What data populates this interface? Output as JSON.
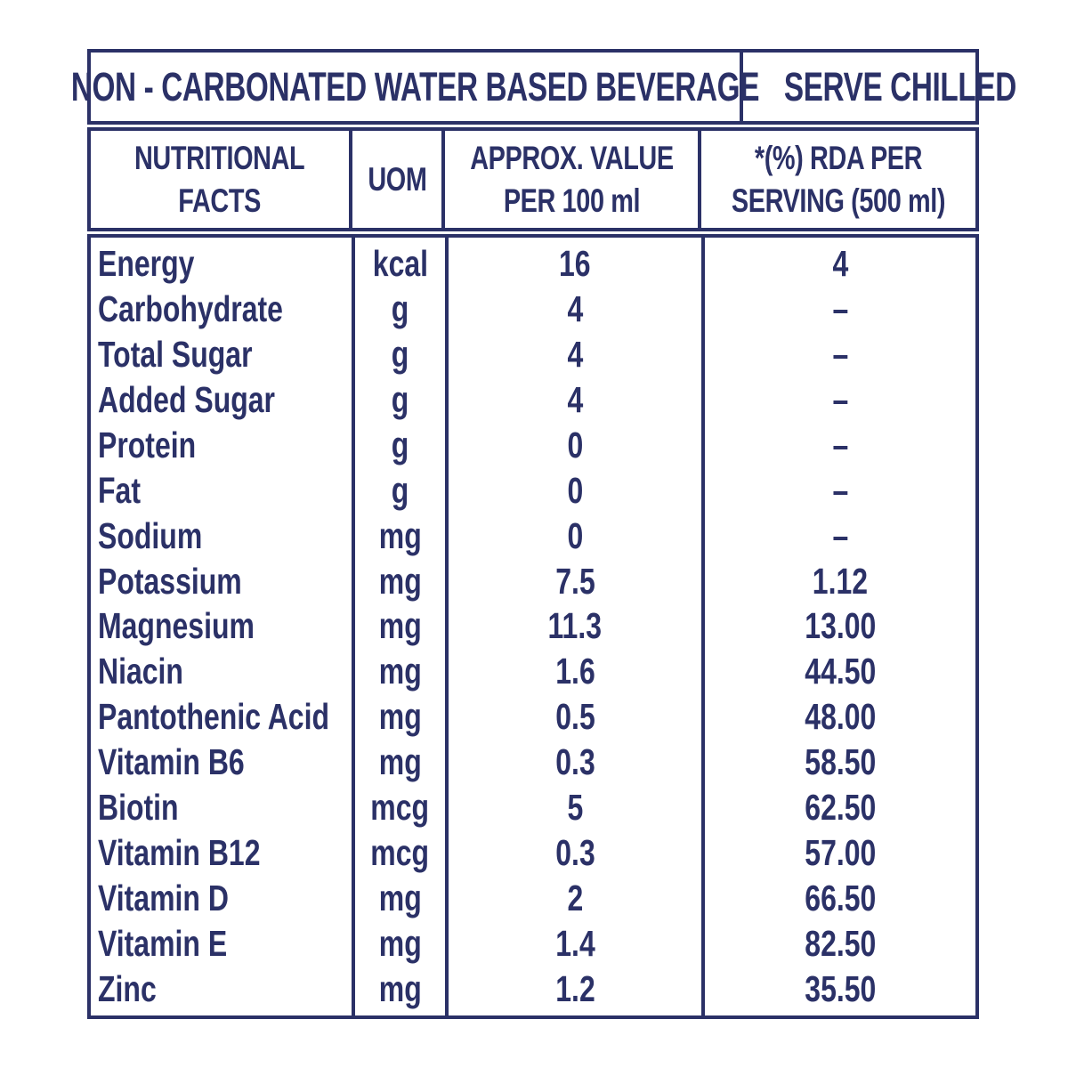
{
  "colors": {
    "ink": "#2b3167",
    "paper": "#ffffff"
  },
  "banner": {
    "product_type": "NON - CARBONATED WATER BASED BEVERAGE",
    "serving_note": "SERVE CHILLED"
  },
  "table": {
    "columns": [
      {
        "id": "name",
        "lines": [
          "NUTRITIONAL",
          "FACTS"
        ]
      },
      {
        "id": "uom",
        "lines": [
          "UOM"
        ]
      },
      {
        "id": "value",
        "lines": [
          "APPROX. VALUE",
          "PER 100 ml"
        ]
      },
      {
        "id": "rda",
        "lines": [
          "*(%) RDA PER",
          "SERVING (500 ml)"
        ]
      }
    ],
    "rows": [
      {
        "name": "Energy",
        "uom": "kcal",
        "value": "16",
        "rda": "4"
      },
      {
        "name": "Carbohydrate",
        "uom": "g",
        "value": "4",
        "rda": "–"
      },
      {
        "name": "Total Sugar",
        "uom": "g",
        "value": "4",
        "rda": "–"
      },
      {
        "name": "Added Sugar",
        "uom": "g",
        "value": "4",
        "rda": "–"
      },
      {
        "name": "Protein",
        "uom": "g",
        "value": "0",
        "rda": "–"
      },
      {
        "name": "Fat",
        "uom": "g",
        "value": "0",
        "rda": "–"
      },
      {
        "name": "Sodium",
        "uom": "mg",
        "value": "0",
        "rda": "–"
      },
      {
        "name": "Potassium",
        "uom": "mg",
        "value": "7.5",
        "rda": "1.12"
      },
      {
        "name": "Magnesium",
        "uom": "mg",
        "value": "11.3",
        "rda": "13.00"
      },
      {
        "name": "Niacin",
        "uom": "mg",
        "value": "1.6",
        "rda": "44.50"
      },
      {
        "name": "Pantothenic Acid",
        "uom": "mg",
        "value": "0.5",
        "rda": "48.00"
      },
      {
        "name": "Vitamin B6",
        "uom": "mg",
        "value": "0.3",
        "rda": "58.50"
      },
      {
        "name": "Biotin",
        "uom": "mcg",
        "value": "5",
        "rda": "62.50"
      },
      {
        "name": "Vitamin B12",
        "uom": "mcg",
        "value": "0.3",
        "rda": "57.00"
      },
      {
        "name": "Vitamin D",
        "uom": "mg",
        "value": "2",
        "rda": "66.50"
      },
      {
        "name": "Vitamin E",
        "uom": "mg",
        "value": "1.4",
        "rda": "82.50"
      },
      {
        "name": "Zinc",
        "uom": "mg",
        "value": "1.2",
        "rda": "35.50"
      }
    ]
  }
}
